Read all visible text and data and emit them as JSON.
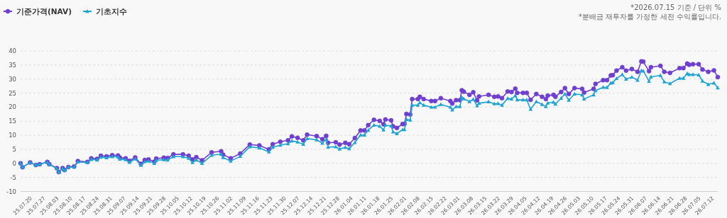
{
  "chart_data": {
    "type": "line",
    "annotations": [
      "*2026.07.15 기준 / 단위 %",
      "*분배금 재투자를 가정한 세전 수익률입니다."
    ],
    "x": [
      "2025-07-15",
      "2025-07-16",
      "2025-07-20",
      "2025-07-23",
      "2025-07-25",
      "2025-07-29",
      "2025-07-30",
      "2025-08-03",
      "2025-08-04",
      "2025-08-06",
      "2025-08-07",
      "2025-08-09",
      "2025-08-12",
      "2025-08-14",
      "2025-08-19",
      "2025-08-21",
      "2025-08-24",
      "2025-08-26",
      "2025-08-29",
      "2025-09-01",
      "2025-09-04",
      "2025-09-05",
      "2025-09-08",
      "2025-09-10",
      "2025-09-13",
      "2025-09-16",
      "2025-09-18",
      "2025-09-20",
      "2025-09-23",
      "2025-09-24",
      "2025-09-28",
      "2025-09-30",
      "2025-10-03",
      "2025-10-08",
      "2025-10-11",
      "2025-10-13",
      "2025-10-15",
      "2025-10-18",
      "2025-10-23",
      "2025-10-28",
      "2025-10-29",
      "2025-11-02",
      "2025-11-07",
      "2025-11-12",
      "2025-11-17",
      "2025-11-22",
      "2025-11-24",
      "2025-11-28",
      "2025-12-02",
      "2025-12-04",
      "2025-12-07",
      "2025-12-10",
      "2025-12-12",
      "2025-12-17",
      "2025-12-20",
      "2025-12-22",
      "2025-12-23",
      "2025-12-27",
      "2025-12-29",
      "2026-01-01",
      "2026-01-03",
      "2026-01-06",
      "2026-01-09",
      "2026-01-11",
      "2026-01-13",
      "2026-01-16",
      "2026-01-19",
      "2026-01-21",
      "2026-01-22",
      "2026-01-25",
      "2026-01-26",
      "2026-01-28",
      "2026-01-31",
      "2026-02-01",
      "2026-02-02",
      "2026-02-04",
      "2026-02-05",
      "2026-02-08",
      "2026-02-09",
      "2026-02-11",
      "2026-02-15",
      "2026-02-17",
      "2026-02-20",
      "2026-02-25",
      "2026-02-26",
      "2026-02-28",
      "2026-03-02",
      "2026-03-03",
      "2026-03-04",
      "2026-03-07",
      "2026-03-09",
      "2026-03-11",
      "2026-03-12",
      "2026-03-17",
      "2026-03-20",
      "2026-03-22",
      "2026-03-24",
      "2026-03-27",
      "2026-03-29",
      "2026-03-31",
      "2026-04-01",
      "2026-04-04",
      "2026-04-06",
      "2026-04-08",
      "2026-04-11",
      "2026-04-14",
      "2026-04-16",
      "2026-04-17",
      "2026-04-20",
      "2026-04-21",
      "2026-04-24",
      "2026-04-26",
      "2026-04-28",
      "2026-05-01",
      "2026-05-05",
      "2026-05-06",
      "2026-05-11",
      "2026-05-12",
      "2026-05-16",
      "2026-05-18",
      "2026-05-20",
      "2026-05-21",
      "2026-05-23",
      "2026-05-26",
      "2026-05-28",
      "2026-05-31",
      "2026-06-03",
      "2026-06-05",
      "2026-06-06",
      "2026-06-09",
      "2026-06-10",
      "2026-06-15",
      "2026-06-17",
      "2026-06-20",
      "2026-06-25",
      "2026-06-27",
      "2026-06-29",
      "2026-06-30",
      "2026-07-02",
      "2026-07-05",
      "2026-07-07",
      "2026-07-10",
      "2026-07-13",
      "2026-07-15"
    ],
    "series": [
      {
        "name": "기준가격(NAV)",
        "color": "#6f3fd0",
        "marker": "circle",
        "values": [
          0.0,
          -1.4,
          0.3,
          -0.6,
          -0.3,
          0.5,
          -0.3,
          -1.7,
          -3.1,
          -1.7,
          -2.4,
          -1.3,
          -1.1,
          0.8,
          0.5,
          1.8,
          1.6,
          2.7,
          2.5,
          2.9,
          2.8,
          2.0,
          1.8,
          0.9,
          2.1,
          -0.2,
          1.2,
          1.4,
          0.6,
          1.7,
          2.0,
          1.9,
          3.2,
          3.2,
          2.7,
          1.4,
          2.2,
          1.1,
          3.9,
          4.3,
          3.1,
          1.8,
          3.5,
          6.7,
          6.4,
          5.0,
          6.8,
          7.7,
          8.2,
          9.6,
          9.1,
          8.2,
          10.2,
          9.7,
          8.6,
          9.8,
          7.3,
          7.5,
          6.7,
          7.3,
          6.8,
          9.0,
          11.7,
          11.7,
          13.6,
          15.5,
          15.1,
          13.9,
          15.6,
          15.3,
          13.2,
          12.6,
          14.0,
          14.0,
          17.6,
          17.4,
          22.9,
          22.9,
          23.7,
          22.9,
          22.2,
          22.2,
          23.2,
          22.2,
          21.3,
          22.5,
          22.5,
          26.0,
          25.5,
          24.4,
          25.3,
          22.4,
          23.8,
          24.4,
          23.7,
          23.8,
          23.2,
          25.6,
          25.4,
          26.6,
          25.1,
          25.1,
          25.1,
          22.6,
          24.7,
          23.7,
          22.9,
          24.1,
          24.4,
          23.7,
          25.4,
          26.8,
          24.7,
          26.8,
          26.5,
          25.2,
          26.5,
          28.3,
          29.6,
          29.6,
          31.3,
          31.4,
          33.0,
          34.2,
          33.0,
          33.6,
          32.6,
          36.3,
          36.2,
          32.8,
          34.2,
          34.7,
          32.6,
          32.2,
          33.9,
          33.9,
          35.5,
          35.1,
          35.3,
          35.3,
          33.4,
          32.6,
          33.1,
          30.7
        ]
      },
      {
        "name": "기초지수",
        "color": "#1fa3d1",
        "marker": "triangle",
        "values": [
          0.0,
          -1.4,
          0.3,
          -0.6,
          -0.3,
          0.4,
          -0.4,
          -1.8,
          -3.2,
          -1.8,
          -2.5,
          -1.4,
          -1.3,
          0.5,
          0.3,
          1.4,
          1.2,
          2.2,
          2.0,
          2.4,
          2.3,
          1.5,
          1.3,
          0.4,
          1.6,
          -0.7,
          0.6,
          0.8,
          0.0,
          1.1,
          1.3,
          1.2,
          2.4,
          2.4,
          1.8,
          0.3,
          1.2,
          0.0,
          2.9,
          3.3,
          2.1,
          0.8,
          2.5,
          5.9,
          5.5,
          4.1,
          5.7,
          6.5,
          7.0,
          8.0,
          7.6,
          6.8,
          8.8,
          8.4,
          7.2,
          8.5,
          5.8,
          5.9,
          5.1,
          5.7,
          5.2,
          7.4,
          10.1,
          10.1,
          11.8,
          13.6,
          13.2,
          11.9,
          13.6,
          13.3,
          11.2,
          10.6,
          12.0,
          12.0,
          15.6,
          15.4,
          20.7,
          20.7,
          21.6,
          20.7,
          20.0,
          20.0,
          21.0,
          20.0,
          19.0,
          20.2,
          20.2,
          23.5,
          23.0,
          22.0,
          22.8,
          20.5,
          21.4,
          21.9,
          21.2,
          21.3,
          20.7,
          23.1,
          22.9,
          24.1,
          22.6,
          22.6,
          22.6,
          19.3,
          22.0,
          21.0,
          20.2,
          21.5,
          21.8,
          21.1,
          23.2,
          24.7,
          22.5,
          24.7,
          24.4,
          22.9,
          24.4,
          25.9,
          27.1,
          27.0,
          28.6,
          28.7,
          30.2,
          31.6,
          30.0,
          30.7,
          29.6,
          33.0,
          32.9,
          29.2,
          30.8,
          31.3,
          29.0,
          28.4,
          30.3,
          30.3,
          32.0,
          31.6,
          31.6,
          31.5,
          29.3,
          28.1,
          28.6,
          26.9
        ]
      }
    ],
    "xlim": [
      "2025-07-15",
      "2026-07-15"
    ],
    "xticks": [
      {
        "value": "2025-07-20",
        "label": "25.07.20"
      },
      {
        "value": "2025-07-27",
        "label": "25.07.27"
      },
      {
        "value": "2025-08-03",
        "label": "25.08.03"
      },
      {
        "value": "2025-08-10",
        "label": "25.08.10"
      },
      {
        "value": "2025-08-17",
        "label": "25.08.17"
      },
      {
        "value": "2025-08-24",
        "label": "25.08.24"
      },
      {
        "value": "2025-08-31",
        "label": "25.08.31"
      },
      {
        "value": "2025-09-07",
        "label": "25.09.07"
      },
      {
        "value": "2025-09-14",
        "label": "25.09.14"
      },
      {
        "value": "2025-09-21",
        "label": "25.09.21"
      },
      {
        "value": "2025-09-28",
        "label": "25.09.28"
      },
      {
        "value": "2025-10-05",
        "label": "25.10.05"
      },
      {
        "value": "2025-10-12",
        "label": "25.10.12"
      },
      {
        "value": "2025-10-19",
        "label": "25.10.19"
      },
      {
        "value": "2025-10-26",
        "label": "25.10.26"
      },
      {
        "value": "2025-11-02",
        "label": "25.11.02"
      },
      {
        "value": "2025-11-09",
        "label": "25.11.09"
      },
      {
        "value": "2025-11-16",
        "label": "25.11.16"
      },
      {
        "value": "2025-11-23",
        "label": "25.11.23"
      },
      {
        "value": "2025-11-30",
        "label": "25.11.30"
      },
      {
        "value": "2025-12-07",
        "label": "25.12.07"
      },
      {
        "value": "2025-12-14",
        "label": "25.12.14"
      },
      {
        "value": "2025-12-21",
        "label": "25.12.21"
      },
      {
        "value": "2025-12-28",
        "label": "25.12.28"
      },
      {
        "value": "2026-01-04",
        "label": "26.01.04"
      },
      {
        "value": "2026-01-11",
        "label": "26.01.11"
      },
      {
        "value": "2026-01-18",
        "label": "26.01.18"
      },
      {
        "value": "2026-01-25",
        "label": "26.01.25"
      },
      {
        "value": "2026-02-01",
        "label": "26.02.01"
      },
      {
        "value": "2026-02-08",
        "label": "26.02.08"
      },
      {
        "value": "2026-02-15",
        "label": "26.02.15"
      },
      {
        "value": "2026-02-22",
        "label": "26.02.22"
      },
      {
        "value": "2026-03-01",
        "label": "26.03.01"
      },
      {
        "value": "2026-03-08",
        "label": "26.03.08"
      },
      {
        "value": "2026-03-15",
        "label": "26.03.15"
      },
      {
        "value": "2026-03-22",
        "label": "26.03.22"
      },
      {
        "value": "2026-03-29",
        "label": "26.03.29"
      },
      {
        "value": "2026-04-05",
        "label": "26.04.05"
      },
      {
        "value": "2026-04-12",
        "label": "26.04.12"
      },
      {
        "value": "2026-04-19",
        "label": "26.04.19"
      },
      {
        "value": "2026-04-26",
        "label": "26.04.26"
      },
      {
        "value": "2026-05-03",
        "label": "26.05.03"
      },
      {
        "value": "2026-05-10",
        "label": "26.05.10"
      },
      {
        "value": "2026-05-17",
        "label": "26.05.17"
      },
      {
        "value": "2026-05-24",
        "label": "26.05.24"
      },
      {
        "value": "2026-05-31",
        "label": "26.05.31"
      },
      {
        "value": "2026-06-07",
        "label": "26.06.07"
      },
      {
        "value": "2026-06-14",
        "label": "26.06.14"
      },
      {
        "value": "2026-06-21",
        "label": "26.06.21"
      },
      {
        "value": "2026-06-28",
        "label": "26.06.28"
      },
      {
        "value": "2026-07-05",
        "label": "26.07.05"
      },
      {
        "value": "2026-07-12",
        "label": "26.07.12"
      }
    ],
    "ylim": [
      -10,
      40
    ],
    "yticks": [
      -10,
      -5,
      0,
      5,
      10,
      15,
      20,
      25,
      30,
      35,
      40
    ],
    "grid": "y",
    "legend": "top left",
    "line_style": "solid"
  }
}
